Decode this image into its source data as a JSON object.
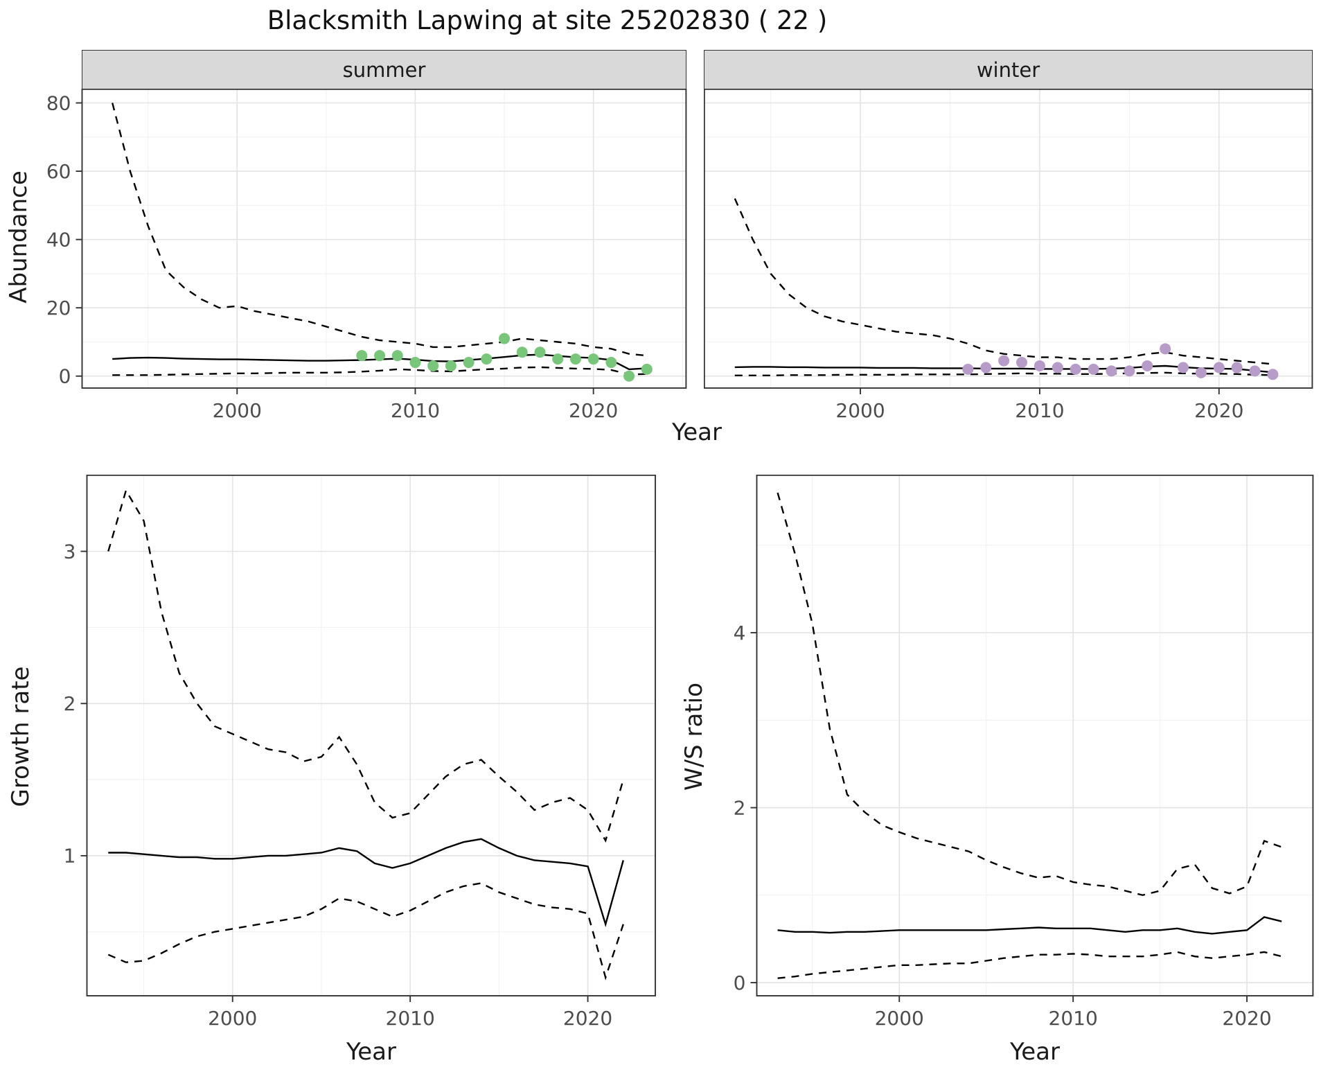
{
  "title": "Blacksmith Lapwing at site 25202830 ( 22 )",
  "axis_labels": {
    "year": "Year",
    "abundance": "Abundance",
    "growth_rate": "Growth rate",
    "ws_ratio": "W/S ratio"
  },
  "colors": {
    "summer_points": "#78c679",
    "winter_points": "#b79bc9",
    "line": "#000000",
    "strip_bg": "#d9d9d9",
    "panel_border": "#333333",
    "grid_major": "#e3e3e3",
    "grid_minor": "#f1f1f1",
    "tick_text": "#4d4d4d"
  },
  "chart_data": [
    {
      "id": "summer-abundance",
      "type": "line",
      "facet_label": "summer",
      "xlabel": "Year",
      "ylabel": "Abundance",
      "x": [
        1993,
        1994,
        1995,
        1996,
        1997,
        1998,
        1999,
        2000,
        2001,
        2002,
        2003,
        2004,
        2005,
        2006,
        2007,
        2008,
        2009,
        2010,
        2011,
        2012,
        2013,
        2014,
        2015,
        2016,
        2017,
        2018,
        2019,
        2020,
        2021,
        2022,
        2023
      ],
      "series": [
        {
          "name": "upper-ci",
          "style": "dashed",
          "values": [
            80,
            60,
            44,
            31,
            26,
            22.5,
            20,
            20.5,
            19,
            18,
            17,
            16,
            14.5,
            13,
            11.5,
            10.5,
            10,
            9.5,
            8.5,
            8.5,
            9,
            9.5,
            10,
            11,
            10.5,
            10,
            9.5,
            8.5,
            8,
            6.5,
            6
          ]
        },
        {
          "name": "mean",
          "style": "solid",
          "values": [
            5,
            5.3,
            5.4,
            5.3,
            5.1,
            5,
            4.9,
            4.9,
            4.8,
            4.7,
            4.6,
            4.5,
            4.5,
            4.6,
            4.7,
            4.9,
            5.1,
            4.8,
            4.4,
            4.3,
            4.7,
            5.1,
            5.6,
            6.1,
            6.3,
            5.9,
            5.5,
            5.3,
            4.7,
            2,
            2.3
          ]
        },
        {
          "name": "lower-ci",
          "style": "dashed",
          "values": [
            0.3,
            0.3,
            0.3,
            0.4,
            0.5,
            0.6,
            0.7,
            0.8,
            0.8,
            0.9,
            1,
            1,
            1,
            1.1,
            1.3,
            1.6,
            2,
            1.8,
            1.5,
            1.4,
            1.7,
            2,
            2.2,
            2.5,
            2.6,
            2.4,
            2.2,
            2.1,
            1.8,
            0.5,
            0.6
          ]
        }
      ],
      "points": {
        "name": "observed",
        "color": "#78c679",
        "x": [
          2007,
          2008,
          2009,
          2010,
          2011,
          2012,
          2013,
          2014,
          2015,
          2016,
          2017,
          2018,
          2019,
          2020,
          2021,
          2022,
          2023
        ],
        "y": [
          6,
          6,
          6,
          4,
          3,
          3,
          4,
          5,
          11,
          7,
          7,
          5,
          5,
          5,
          4,
          0,
          2
        ]
      },
      "xlim": [
        1991.3,
        2025.2
      ],
      "ylim": [
        -3.5,
        84
      ],
      "xticks": [
        2000,
        2010,
        2020
      ],
      "xminor": [
        1995,
        2005,
        2015,
        2025
      ],
      "yticks": [
        0,
        20,
        40,
        60,
        80
      ],
      "yminor": [
        10,
        30,
        50,
        70
      ],
      "show_y_tick_labels": true
    },
    {
      "id": "winter-abundance",
      "type": "line",
      "facet_label": "winter",
      "xlabel": "Year",
      "ylabel": "Abundance",
      "x": [
        1993,
        1994,
        1995,
        1996,
        1997,
        1998,
        1999,
        2000,
        2001,
        2002,
        2003,
        2004,
        2005,
        2006,
        2007,
        2008,
        2009,
        2010,
        2011,
        2012,
        2013,
        2014,
        2015,
        2016,
        2017,
        2018,
        2019,
        2020,
        2021,
        2022,
        2023
      ],
      "series": [
        {
          "name": "upper-ci",
          "style": "dashed",
          "values": [
            52,
            40,
            30,
            24,
            20,
            17.5,
            16,
            15,
            14,
            13,
            12.5,
            12,
            11,
            9.5,
            7.5,
            6.5,
            6,
            5.5,
            5.5,
            5,
            5,
            5,
            5.5,
            6.5,
            7,
            6,
            5.5,
            5,
            4.5,
            4,
            3.5
          ]
        },
        {
          "name": "mean",
          "style": "solid",
          "values": [
            2.6,
            2.7,
            2.7,
            2.6,
            2.6,
            2.5,
            2.5,
            2.5,
            2.4,
            2.4,
            2.4,
            2.3,
            2.3,
            2.3,
            2.2,
            2.2,
            2.2,
            2.1,
            2.1,
            2.1,
            2.1,
            2.2,
            2.4,
            2.8,
            3,
            2.6,
            2.3,
            2.2,
            2.1,
            1.6,
            1.1
          ]
        },
        {
          "name": "lower-ci",
          "style": "dashed",
          "values": [
            0.2,
            0.2,
            0.2,
            0.3,
            0.3,
            0.3,
            0.4,
            0.4,
            0.4,
            0.4,
            0.5,
            0.5,
            0.5,
            0.5,
            0.6,
            0.7,
            0.8,
            0.7,
            0.7,
            0.6,
            0.6,
            0.7,
            0.8,
            0.9,
            1,
            0.8,
            0.7,
            0.7,
            0.6,
            0.4,
            0.3
          ]
        }
      ],
      "points": {
        "name": "observed",
        "color": "#b79bc9",
        "x": [
          2006,
          2007,
          2008,
          2009,
          2010,
          2011,
          2012,
          2013,
          2014,
          2015,
          2016,
          2017,
          2018,
          2019,
          2020,
          2021,
          2022,
          2023
        ],
        "y": [
          2,
          2.5,
          4.5,
          4,
          3,
          2.5,
          2,
          2,
          1.5,
          1.5,
          3,
          8,
          2.5,
          1,
          2.5,
          2.5,
          1.5,
          0.5
        ]
      },
      "xlim": [
        1991.3,
        2025.2
      ],
      "ylim": [
        -3.5,
        84
      ],
      "xticks": [
        2000,
        2010,
        2020
      ],
      "xminor": [
        1995,
        2005,
        2015,
        2025
      ],
      "yticks": [
        0,
        20,
        40,
        60,
        80
      ],
      "yminor": [
        10,
        30,
        50,
        70
      ],
      "show_y_tick_labels": false
    },
    {
      "id": "growth-rate",
      "type": "line",
      "facet_label": "",
      "xlabel": "Year",
      "ylabel": "Growth rate",
      "x": [
        1993,
        1994,
        1995,
        1996,
        1997,
        1998,
        1999,
        2000,
        2001,
        2002,
        2003,
        2004,
        2005,
        2006,
        2007,
        2008,
        2009,
        2010,
        2011,
        2012,
        2013,
        2014,
        2015,
        2016,
        2017,
        2018,
        2019,
        2020,
        2021,
        2022
      ],
      "series": [
        {
          "name": "upper-ci",
          "style": "dashed",
          "values": [
            3.0,
            3.4,
            3.2,
            2.6,
            2.2,
            2.0,
            1.85,
            1.8,
            1.75,
            1.7,
            1.68,
            1.62,
            1.65,
            1.78,
            1.6,
            1.35,
            1.25,
            1.28,
            1.4,
            1.52,
            1.6,
            1.63,
            1.52,
            1.42,
            1.3,
            1.35,
            1.38,
            1.3,
            1.1,
            1.5
          ]
        },
        {
          "name": "mean",
          "style": "solid",
          "values": [
            1.02,
            1.02,
            1.01,
            1.0,
            0.99,
            0.99,
            0.98,
            0.98,
            0.99,
            1.0,
            1.0,
            1.01,
            1.02,
            1.05,
            1.03,
            0.95,
            0.92,
            0.95,
            1.0,
            1.05,
            1.09,
            1.11,
            1.05,
            1.0,
            0.97,
            0.96,
            0.95,
            0.93,
            0.55,
            0.97
          ]
        },
        {
          "name": "lower-ci",
          "style": "dashed",
          "values": [
            0.35,
            0.3,
            0.31,
            0.36,
            0.42,
            0.47,
            0.5,
            0.52,
            0.54,
            0.56,
            0.58,
            0.6,
            0.65,
            0.72,
            0.7,
            0.65,
            0.6,
            0.64,
            0.7,
            0.76,
            0.8,
            0.82,
            0.76,
            0.72,
            0.68,
            0.66,
            0.65,
            0.62,
            0.2,
            0.55
          ]
        }
      ],
      "xlim": [
        1991.8,
        2023.8
      ],
      "ylim": [
        0.08,
        3.5
      ],
      "xticks": [
        2000,
        2010,
        2020
      ],
      "xminor": [
        1995,
        2005,
        2015
      ],
      "yticks": [
        1,
        2,
        3
      ],
      "yminor": [
        0.5,
        1.5,
        2.5,
        3.5
      ],
      "show_y_tick_labels": true
    },
    {
      "id": "ws-ratio",
      "type": "line",
      "facet_label": "",
      "xlabel": "Year",
      "ylabel": "W/S ratio",
      "x": [
        1993,
        1994,
        1995,
        1996,
        1997,
        1998,
        1999,
        2000,
        2001,
        2002,
        2003,
        2004,
        2005,
        2006,
        2007,
        2008,
        2009,
        2010,
        2011,
        2012,
        2013,
        2014,
        2015,
        2016,
        2017,
        2018,
        2019,
        2020,
        2021,
        2022
      ],
      "series": [
        {
          "name": "upper-ci",
          "style": "dashed",
          "values": [
            5.6,
            4.9,
            4.1,
            2.9,
            2.15,
            1.95,
            1.8,
            1.72,
            1.65,
            1.6,
            1.55,
            1.5,
            1.4,
            1.32,
            1.25,
            1.2,
            1.22,
            1.15,
            1.12,
            1.1,
            1.05,
            1.0,
            1.05,
            1.3,
            1.35,
            1.08,
            1.02,
            1.1,
            1.62,
            1.55
          ]
        },
        {
          "name": "mean",
          "style": "solid",
          "values": [
            0.6,
            0.58,
            0.58,
            0.57,
            0.58,
            0.58,
            0.59,
            0.6,
            0.6,
            0.6,
            0.6,
            0.6,
            0.6,
            0.61,
            0.62,
            0.63,
            0.62,
            0.62,
            0.62,
            0.6,
            0.58,
            0.6,
            0.6,
            0.62,
            0.58,
            0.56,
            0.58,
            0.6,
            0.75,
            0.7
          ]
        },
        {
          "name": "lower-ci",
          "style": "dashed",
          "values": [
            0.05,
            0.07,
            0.1,
            0.12,
            0.14,
            0.16,
            0.18,
            0.2,
            0.2,
            0.21,
            0.22,
            0.22,
            0.25,
            0.28,
            0.3,
            0.32,
            0.32,
            0.33,
            0.32,
            0.3,
            0.3,
            0.3,
            0.32,
            0.35,
            0.3,
            0.28,
            0.3,
            0.32,
            0.35,
            0.3
          ]
        }
      ],
      "xlim": [
        1991.8,
        2023.8
      ],
      "ylim": [
        -0.15,
        5.8
      ],
      "xticks": [
        2000,
        2010,
        2020
      ],
      "xminor": [
        1995,
        2005,
        2015
      ],
      "yticks": [
        0,
        2,
        4
      ],
      "yminor": [
        1,
        3,
        5
      ],
      "show_y_tick_labels": true
    }
  ]
}
